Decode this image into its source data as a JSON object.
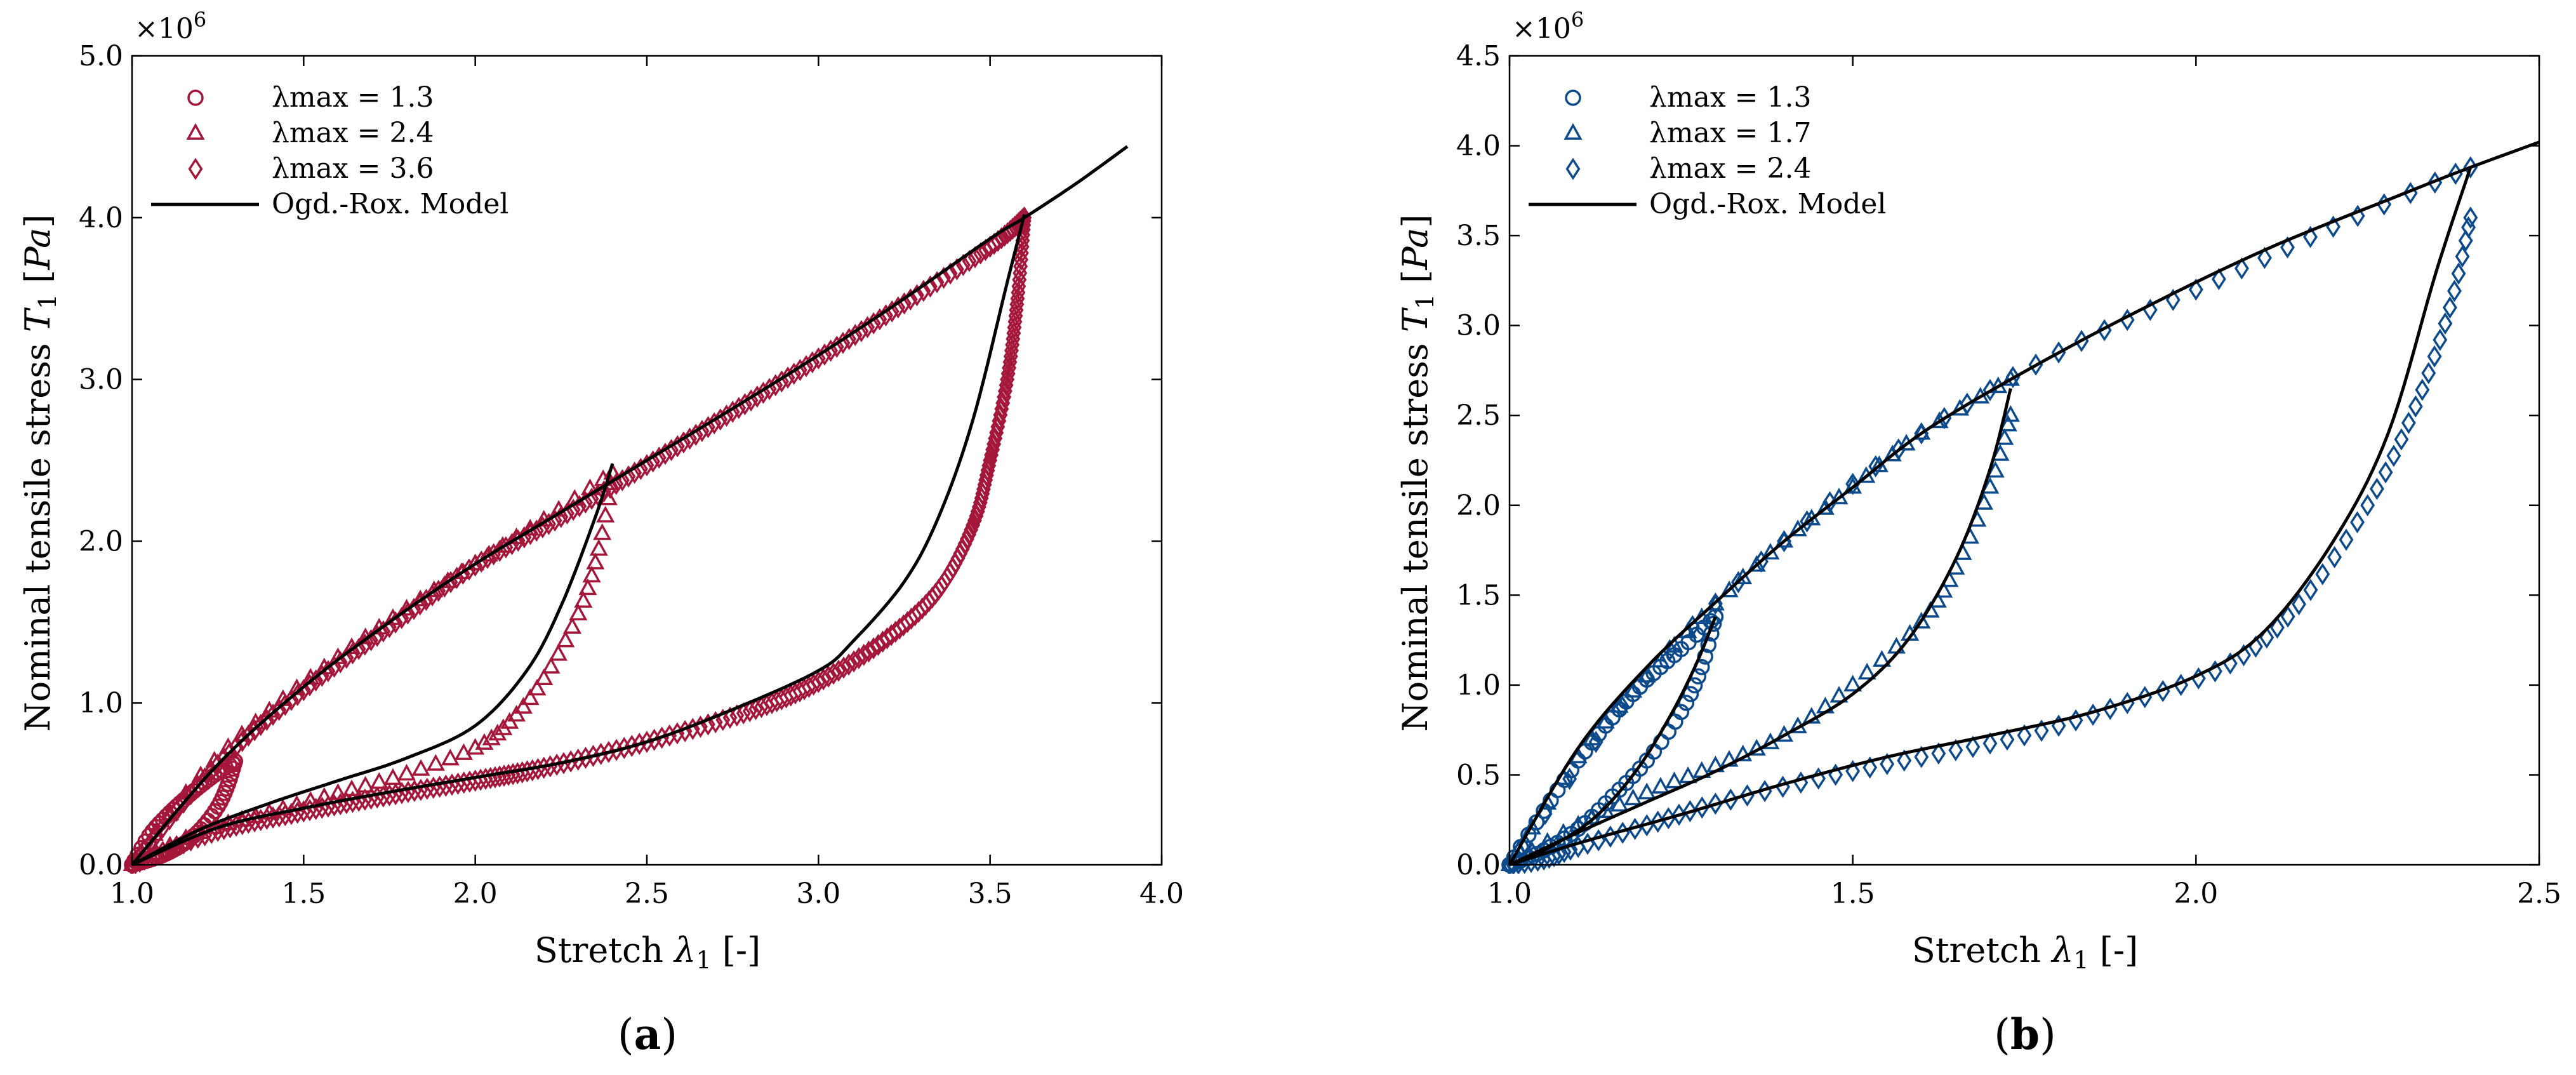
{
  "figure": {
    "panels": [
      {
        "label_open": "(",
        "label_letter": "a",
        "label_close": ")"
      },
      {
        "label_open": "(",
        "label_letter": "b",
        "label_close": ")"
      }
    ]
  },
  "chart_data": [
    {
      "type": "scatter",
      "title": "",
      "xlabel": "Stretch λ1 [-]",
      "ylabel": "Nominal tensile stress T1 [Pa]",
      "y_exponent": "×10^6",
      "xlim": [
        1.0,
        4.0
      ],
      "ylim": [
        0.0,
        5.0
      ],
      "xticks": [
        "1.0",
        "1.5",
        "2.0",
        "2.5",
        "3.0",
        "3.5",
        "4.0"
      ],
      "yticks": [
        "0.0",
        "1.0",
        "2.0",
        "3.0",
        "4.0",
        "5.0"
      ],
      "legend_position": "top-left",
      "color": "#a4173a",
      "series": [
        {
          "name": "λmax = 1.3",
          "marker": "circle",
          "loading": [
            [
              1.0,
              0
            ],
            [
              1.05,
              0.18
            ],
            [
              1.1,
              0.3
            ],
            [
              1.15,
              0.4
            ],
            [
              1.2,
              0.49
            ],
            [
              1.25,
              0.57
            ],
            [
              1.3,
              0.64
            ]
          ],
          "unloading": [
            [
              1.3,
              0.64
            ],
            [
              1.28,
              0.5
            ],
            [
              1.25,
              0.36
            ],
            [
              1.2,
              0.22
            ],
            [
              1.15,
              0.13
            ],
            [
              1.1,
              0.07
            ],
            [
              1.05,
              0.03
            ],
            [
              1.0,
              0
            ]
          ]
        },
        {
          "name": "λmax = 2.4",
          "marker": "triangle",
          "loading": [
            [
              1.0,
              0
            ],
            [
              1.2,
              0.55
            ],
            [
              1.4,
              0.95
            ],
            [
              1.6,
              1.28
            ],
            [
              1.8,
              1.58
            ],
            [
              2.0,
              1.86
            ],
            [
              2.2,
              2.13
            ],
            [
              2.4,
              2.42
            ]
          ],
          "unloading": [
            [
              2.4,
              2.42
            ],
            [
              2.36,
              1.95
            ],
            [
              2.3,
              1.55
            ],
            [
              2.2,
              1.15
            ],
            [
              2.1,
              0.88
            ],
            [
              2.0,
              0.72
            ],
            [
              1.8,
              0.56
            ],
            [
              1.6,
              0.44
            ],
            [
              1.4,
              0.32
            ],
            [
              1.2,
              0.2
            ],
            [
              1.0,
              0
            ]
          ]
        },
        {
          "name": "λmax = 3.6",
          "marker": "diamond",
          "loading": [
            [
              1.0,
              0
            ],
            [
              1.25,
              0.62
            ],
            [
              1.5,
              1.08
            ],
            [
              1.75,
              1.47
            ],
            [
              2.0,
              1.85
            ],
            [
              2.25,
              2.15
            ],
            [
              2.5,
              2.47
            ],
            [
              2.75,
              2.8
            ],
            [
              3.0,
              3.13
            ],
            [
              3.25,
              3.47
            ],
            [
              3.5,
              3.82
            ],
            [
              3.6,
              4.0
            ]
          ],
          "unloading": [
            [
              3.6,
              4.0
            ],
            [
              3.58,
              3.5
            ],
            [
              3.55,
              3.0
            ],
            [
              3.5,
              2.5
            ],
            [
              3.45,
              2.1
            ],
            [
              3.35,
              1.7
            ],
            [
              3.2,
              1.4
            ],
            [
              3.0,
              1.13
            ],
            [
              2.8,
              0.95
            ],
            [
              2.5,
              0.76
            ],
            [
              2.2,
              0.6
            ],
            [
              2.0,
              0.52
            ],
            [
              1.75,
              0.43
            ],
            [
              1.5,
              0.33
            ],
            [
              1.25,
              0.21
            ],
            [
              1.0,
              0
            ]
          ]
        }
      ],
      "model": {
        "name": "Ogd.-Rox. Model",
        "loading": [
          [
            1.0,
            0
          ],
          [
            1.25,
            0.62
          ],
          [
            1.5,
            1.1
          ],
          [
            1.75,
            1.5
          ],
          [
            2.0,
            1.86
          ],
          [
            2.25,
            2.18
          ],
          [
            2.5,
            2.5
          ],
          [
            2.75,
            2.82
          ],
          [
            3.0,
            3.15
          ],
          [
            3.25,
            3.5
          ],
          [
            3.5,
            3.87
          ],
          [
            3.6,
            4.0
          ],
          [
            3.75,
            4.21
          ],
          [
            3.9,
            4.44
          ]
        ],
        "unloading_2_4": [
          [
            2.4,
            2.48
          ],
          [
            2.35,
            2.15
          ],
          [
            2.25,
            1.6
          ],
          [
            2.15,
            1.2
          ],
          [
            2.0,
            0.86
          ],
          [
            1.8,
            0.66
          ],
          [
            1.6,
            0.52
          ],
          [
            1.4,
            0.38
          ],
          [
            1.2,
            0.22
          ],
          [
            1.0,
            0
          ]
        ],
        "unloading_3_6": [
          [
            3.6,
            4.02
          ],
          [
            3.55,
            3.6
          ],
          [
            3.45,
            2.75
          ],
          [
            3.35,
            2.15
          ],
          [
            3.25,
            1.75
          ],
          [
            3.1,
            1.38
          ],
          [
            3.0,
            1.2
          ],
          [
            2.75,
            0.96
          ],
          [
            2.5,
            0.76
          ],
          [
            2.25,
            0.63
          ],
          [
            2.0,
            0.54
          ],
          [
            1.75,
            0.45
          ],
          [
            1.5,
            0.35
          ],
          [
            1.25,
            0.23
          ],
          [
            1.0,
            0
          ]
        ]
      }
    },
    {
      "type": "scatter",
      "title": "",
      "xlabel": "Stretch λ1 [-]",
      "ylabel": "Nominal tensile stress T1 [Pa]",
      "y_exponent": "×10^6",
      "xlim": [
        1.0,
        2.5
      ],
      "ylim": [
        0.0,
        4.5
      ],
      "xticks": [
        "1.0",
        "1.5",
        "2.0",
        "2.5"
      ],
      "yticks": [
        "0.0",
        "0.5",
        "1.0",
        "1.5",
        "2.0",
        "2.5",
        "3.0",
        "3.5",
        "4.0",
        "4.5"
      ],
      "legend_position": "top-left",
      "color": "#0d4a8c",
      "series": [
        {
          "name": "λmax = 1.3",
          "marker": "circle",
          "loading": [
            [
              1.0,
              0
            ],
            [
              1.05,
              0.3
            ],
            [
              1.1,
              0.58
            ],
            [
              1.15,
              0.82
            ],
            [
              1.2,
              1.03
            ],
            [
              1.25,
              1.2
            ],
            [
              1.3,
              1.38
            ]
          ],
          "unloading": [
            [
              1.3,
              1.38
            ],
            [
              1.28,
              1.1
            ],
            [
              1.25,
              0.85
            ],
            [
              1.2,
              0.58
            ],
            [
              1.15,
              0.38
            ],
            [
              1.1,
              0.2
            ],
            [
              1.05,
              0.08
            ],
            [
              1.0,
              0
            ]
          ]
        },
        {
          "name": "λmax = 1.7",
          "marker": "triangle",
          "loading": [
            [
              1.0,
              0
            ],
            [
              1.1,
              0.6
            ],
            [
              1.2,
              1.05
            ],
            [
              1.3,
              1.45
            ],
            [
              1.4,
              1.8
            ],
            [
              1.5,
              2.1
            ],
            [
              1.6,
              2.4
            ],
            [
              1.73,
              2.7
            ]
          ],
          "unloading": [
            [
              1.73,
              2.5
            ],
            [
              1.7,
              2.1
            ],
            [
              1.65,
              1.65
            ],
            [
              1.6,
              1.35
            ],
            [
              1.5,
              1.0
            ],
            [
              1.4,
              0.72
            ],
            [
              1.3,
              0.55
            ],
            [
              1.2,
              0.4
            ],
            [
              1.1,
              0.22
            ],
            [
              1.0,
              0
            ]
          ]
        },
        {
          "name": "λmax = 2.4",
          "marker": "diamond",
          "loading": [
            [
              1.0,
              0
            ],
            [
              1.2,
              1.05
            ],
            [
              1.4,
              1.8
            ],
            [
              1.6,
              2.4
            ],
            [
              1.8,
              2.85
            ],
            [
              2.0,
              3.2
            ],
            [
              2.2,
              3.55
            ],
            [
              2.4,
              3.88
            ]
          ],
          "unloading": [
            [
              2.4,
              3.6
            ],
            [
              2.37,
              3.1
            ],
            [
              2.32,
              2.55
            ],
            [
              2.25,
              2.0
            ],
            [
              2.15,
              1.45
            ],
            [
              2.05,
              1.12
            ],
            [
              1.9,
              0.9
            ],
            [
              1.75,
              0.72
            ],
            [
              1.6,
              0.6
            ],
            [
              1.45,
              0.48
            ],
            [
              1.3,
              0.34
            ],
            [
              1.2,
              0.22
            ],
            [
              1.1,
              0.1
            ],
            [
              1.05,
              0.03
            ],
            [
              1.0,
              0
            ]
          ]
        }
      ],
      "model": {
        "name": "Ogd.-Rox. Model",
        "loading": [
          [
            1.0,
            0
          ],
          [
            1.1,
            0.65
          ],
          [
            1.2,
            1.1
          ],
          [
            1.3,
            1.46
          ],
          [
            1.4,
            1.8
          ],
          [
            1.5,
            2.1
          ],
          [
            1.6,
            2.4
          ],
          [
            1.73,
            2.7
          ],
          [
            1.9,
            3.05
          ],
          [
            2.1,
            3.42
          ],
          [
            2.3,
            3.73
          ],
          [
            2.4,
            3.88
          ],
          [
            2.5,
            4.02
          ]
        ],
        "unloading_1_3": [
          [
            1.3,
            1.38
          ],
          [
            1.27,
            1.1
          ],
          [
            1.23,
            0.8
          ],
          [
            1.18,
            0.5
          ],
          [
            1.12,
            0.25
          ],
          [
            1.05,
            0.08
          ],
          [
            1.0,
            0
          ]
        ],
        "unloading_1_7": [
          [
            1.73,
            2.65
          ],
          [
            1.7,
            2.2
          ],
          [
            1.65,
            1.7
          ],
          [
            1.58,
            1.25
          ],
          [
            1.5,
            0.95
          ],
          [
            1.4,
            0.72
          ],
          [
            1.3,
            0.52
          ],
          [
            1.2,
            0.35
          ],
          [
            1.1,
            0.18
          ],
          [
            1.0,
            0
          ]
        ],
        "unloading_2_4": [
          [
            2.4,
            3.88
          ],
          [
            2.35,
            3.3
          ],
          [
            2.28,
            2.4
          ],
          [
            2.2,
            1.8
          ],
          [
            2.1,
            1.3
          ],
          [
            2.0,
            1.05
          ],
          [
            1.85,
            0.85
          ],
          [
            1.7,
            0.72
          ],
          [
            1.55,
            0.6
          ],
          [
            1.4,
            0.45
          ],
          [
            1.25,
            0.28
          ],
          [
            1.1,
            0.12
          ],
          [
            1.0,
            0
          ]
        ]
      }
    }
  ]
}
